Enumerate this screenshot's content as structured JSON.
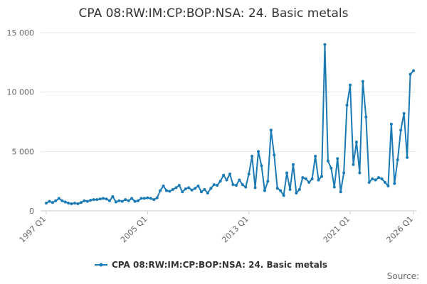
{
  "chart_data": {
    "type": "line",
    "title": "CPA 08:RW:IM:CP:BOP:NSA: 24. Basic metals",
    "categories": [
      "1997 Q1",
      null,
      null,
      null,
      null,
      null,
      null,
      null,
      null,
      null,
      null,
      null,
      null,
      null,
      null,
      null,
      null,
      null,
      null,
      null,
      null,
      null,
      null,
      null,
      null,
      null,
      null,
      null,
      null,
      null,
      null,
      null,
      "2005 Q1",
      null,
      null,
      null,
      null,
      null,
      null,
      null,
      null,
      null,
      null,
      null,
      null,
      null,
      null,
      null,
      null,
      null,
      null,
      null,
      null,
      null,
      null,
      null,
      null,
      null,
      null,
      null,
      null,
      null,
      null,
      null,
      "2013 Q1",
      null,
      null,
      null,
      null,
      null,
      null,
      null,
      null,
      null,
      null,
      null,
      null,
      null,
      null,
      null,
      null,
      null,
      null,
      null,
      null,
      null,
      null,
      null,
      null,
      null,
      null,
      null,
      null,
      null,
      null,
      null,
      "2021 Q1",
      null,
      null,
      null,
      null,
      null,
      null,
      null,
      null,
      null,
      null,
      null,
      null,
      null,
      null,
      null,
      null,
      null,
      null,
      null,
      "2026 Q1"
    ],
    "series": [
      {
        "name": "CPA 08:RW:IM:CP:BOP:NSA: 24. Basic metals",
        "color": "#1a7ab5",
        "values": [
          650,
          800,
          700,
          850,
          1050,
          850,
          750,
          650,
          600,
          650,
          600,
          700,
          850,
          800,
          900,
          950,
          950,
          1000,
          1050,
          1000,
          850,
          1200,
          750,
          850,
          800,
          950,
          850,
          1050,
          800,
          850,
          1050,
          1050,
          1100,
          1050,
          950,
          1100,
          1700,
          2100,
          1700,
          1650,
          1800,
          1950,
          2150,
          1600,
          1850,
          1950,
          1750,
          1900,
          2100,
          1600,
          1800,
          1500,
          1900,
          2200,
          2150,
          2500,
          3000,
          2600,
          3100,
          2200,
          2150,
          2600,
          2200,
          2000,
          3100,
          4600,
          1950,
          5000,
          3800,
          1700,
          2500,
          6800,
          4700,
          1900,
          1700,
          1300,
          3200,
          1800,
          3900,
          1500,
          1800,
          2800,
          2700,
          2400,
          2700,
          4600,
          2600,
          2900,
          14000,
          4200,
          3600,
          2000,
          4400,
          1600,
          3200,
          8900,
          10600,
          3900,
          5800,
          3200,
          10900,
          7900,
          2400,
          2700,
          2600,
          2800,
          2700,
          2400,
          2100,
          7300,
          2300,
          4300,
          6800,
          8200,
          4500,
          11500,
          11800
        ]
      }
    ],
    "ylim": [
      0,
      15000
    ],
    "yticks": [
      0,
      {
        "value": 5000,
        "label": "5 000"
      },
      {
        "value": 10000,
        "label": "10 000"
      },
      {
        "value": 15000,
        "label": "15 000"
      }
    ],
    "grid": true,
    "source": "Source:"
  }
}
